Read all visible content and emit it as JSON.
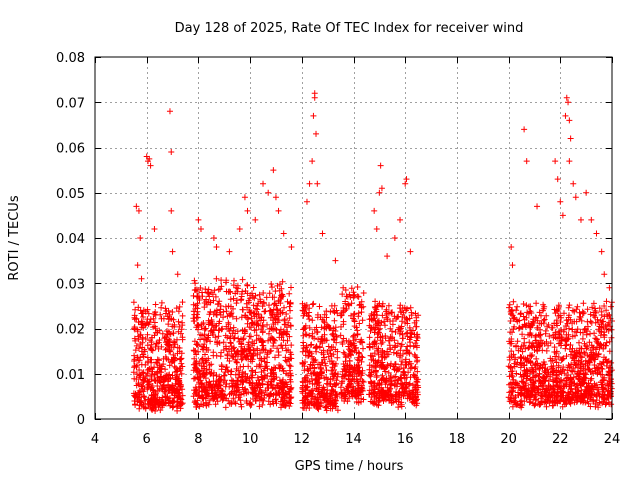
{
  "chart_data": {
    "type": "scatter",
    "title": "Day 128 of 2025, Rate Of TEC Index for receiver wind",
    "xlabel": "GPS time / hours",
    "ylabel": "ROTI / TECUs",
    "xlim": [
      4,
      24
    ],
    "ylim": [
      0,
      0.08
    ],
    "x_ticks": [
      4,
      6,
      8,
      10,
      12,
      14,
      16,
      18,
      20,
      22,
      24
    ],
    "x_tick_labels": [
      "4",
      "6",
      "8",
      "10",
      "12",
      "14",
      "16",
      "18",
      "20",
      "22",
      "24"
    ],
    "y_ticks": [
      0,
      0.01,
      0.02,
      0.03,
      0.04,
      0.05,
      0.06,
      0.07,
      0.08
    ],
    "y_tick_labels": [
      "0",
      "0.01",
      "0.02",
      "0.03",
      "0.04",
      "0.05",
      "0.06",
      "0.07",
      "0.08"
    ],
    "grid": true,
    "marker": "+",
    "marker_color": "#ff0000",
    "point_clusters": [
      {
        "x_range": [
          5.5,
          7.4
        ],
        "typical_y": [
          0.003,
          0.025
        ]
      },
      {
        "x_range": [
          7.8,
          11.6
        ],
        "typical_y": [
          0.004,
          0.03
        ]
      },
      {
        "x_range": [
          12.0,
          13.4
        ],
        "typical_y": [
          0.003,
          0.025
        ]
      },
      {
        "x_range": [
          13.5,
          14.4
        ],
        "typical_y": [
          0.005,
          0.028
        ]
      },
      {
        "x_range": [
          14.6,
          16.5
        ],
        "typical_y": [
          0.004,
          0.025
        ]
      },
      {
        "x_range": [
          20.0,
          24.0
        ],
        "typical_y": [
          0.004,
          0.025
        ]
      }
    ],
    "points": [
      [
        5.6,
        0.047
      ],
      [
        5.7,
        0.046
      ],
      [
        5.75,
        0.04
      ],
      [
        5.65,
        0.034
      ],
      [
        5.8,
        0.031
      ],
      [
        6.0,
        0.058
      ],
      [
        6.05,
        0.057
      ],
      [
        6.1,
        0.0575
      ],
      [
        6.15,
        0.056
      ],
      [
        6.3,
        0.042
      ],
      [
        6.9,
        0.068
      ],
      [
        6.95,
        0.059
      ],
      [
        6.95,
        0.046
      ],
      [
        7.0,
        0.037
      ],
      [
        7.2,
        0.032
      ],
      [
        8.0,
        0.044
      ],
      [
        8.1,
        0.042
      ],
      [
        8.6,
        0.04
      ],
      [
        8.7,
        0.038
      ],
      [
        9.2,
        0.037
      ],
      [
        9.6,
        0.042
      ],
      [
        9.8,
        0.049
      ],
      [
        9.9,
        0.046
      ],
      [
        10.2,
        0.044
      ],
      [
        10.5,
        0.052
      ],
      [
        10.7,
        0.05
      ],
      [
        10.9,
        0.055
      ],
      [
        11.0,
        0.049
      ],
      [
        11.1,
        0.046
      ],
      [
        11.3,
        0.041
      ],
      [
        11.6,
        0.038
      ],
      [
        12.2,
        0.048
      ],
      [
        12.3,
        0.052
      ],
      [
        12.4,
        0.057
      ],
      [
        12.45,
        0.067
      ],
      [
        12.5,
        0.072
      ],
      [
        12.5,
        0.071
      ],
      [
        12.55,
        0.063
      ],
      [
        12.6,
        0.052
      ],
      [
        12.8,
        0.041
      ],
      [
        13.3,
        0.035
      ],
      [
        13.6,
        0.029
      ],
      [
        14.0,
        0.028
      ],
      [
        14.2,
        0.027
      ],
      [
        14.8,
        0.046
      ],
      [
        14.9,
        0.042
      ],
      [
        15.0,
        0.05
      ],
      [
        15.1,
        0.051
      ],
      [
        15.05,
        0.056
      ],
      [
        15.3,
        0.036
      ],
      [
        15.6,
        0.04
      ],
      [
        15.8,
        0.044
      ],
      [
        16.0,
        0.052
      ],
      [
        16.05,
        0.053
      ],
      [
        16.2,
        0.037
      ],
      [
        20.1,
        0.038
      ],
      [
        20.15,
        0.034
      ],
      [
        20.6,
        0.064
      ],
      [
        20.7,
        0.057
      ],
      [
        21.1,
        0.047
      ],
      [
        21.8,
        0.057
      ],
      [
        21.9,
        0.053
      ],
      [
        22.0,
        0.048
      ],
      [
        22.1,
        0.045
      ],
      [
        22.2,
        0.067
      ],
      [
        22.25,
        0.071
      ],
      [
        22.3,
        0.07
      ],
      [
        22.35,
        0.066
      ],
      [
        22.4,
        0.062
      ],
      [
        22.35,
        0.057
      ],
      [
        22.5,
        0.052
      ],
      [
        22.6,
        0.049
      ],
      [
        22.8,
        0.044
      ],
      [
        23.0,
        0.05
      ],
      [
        23.2,
        0.044
      ],
      [
        23.4,
        0.041
      ],
      [
        23.6,
        0.037
      ],
      [
        23.7,
        0.032
      ],
      [
        23.9,
        0.029
      ]
    ]
  }
}
